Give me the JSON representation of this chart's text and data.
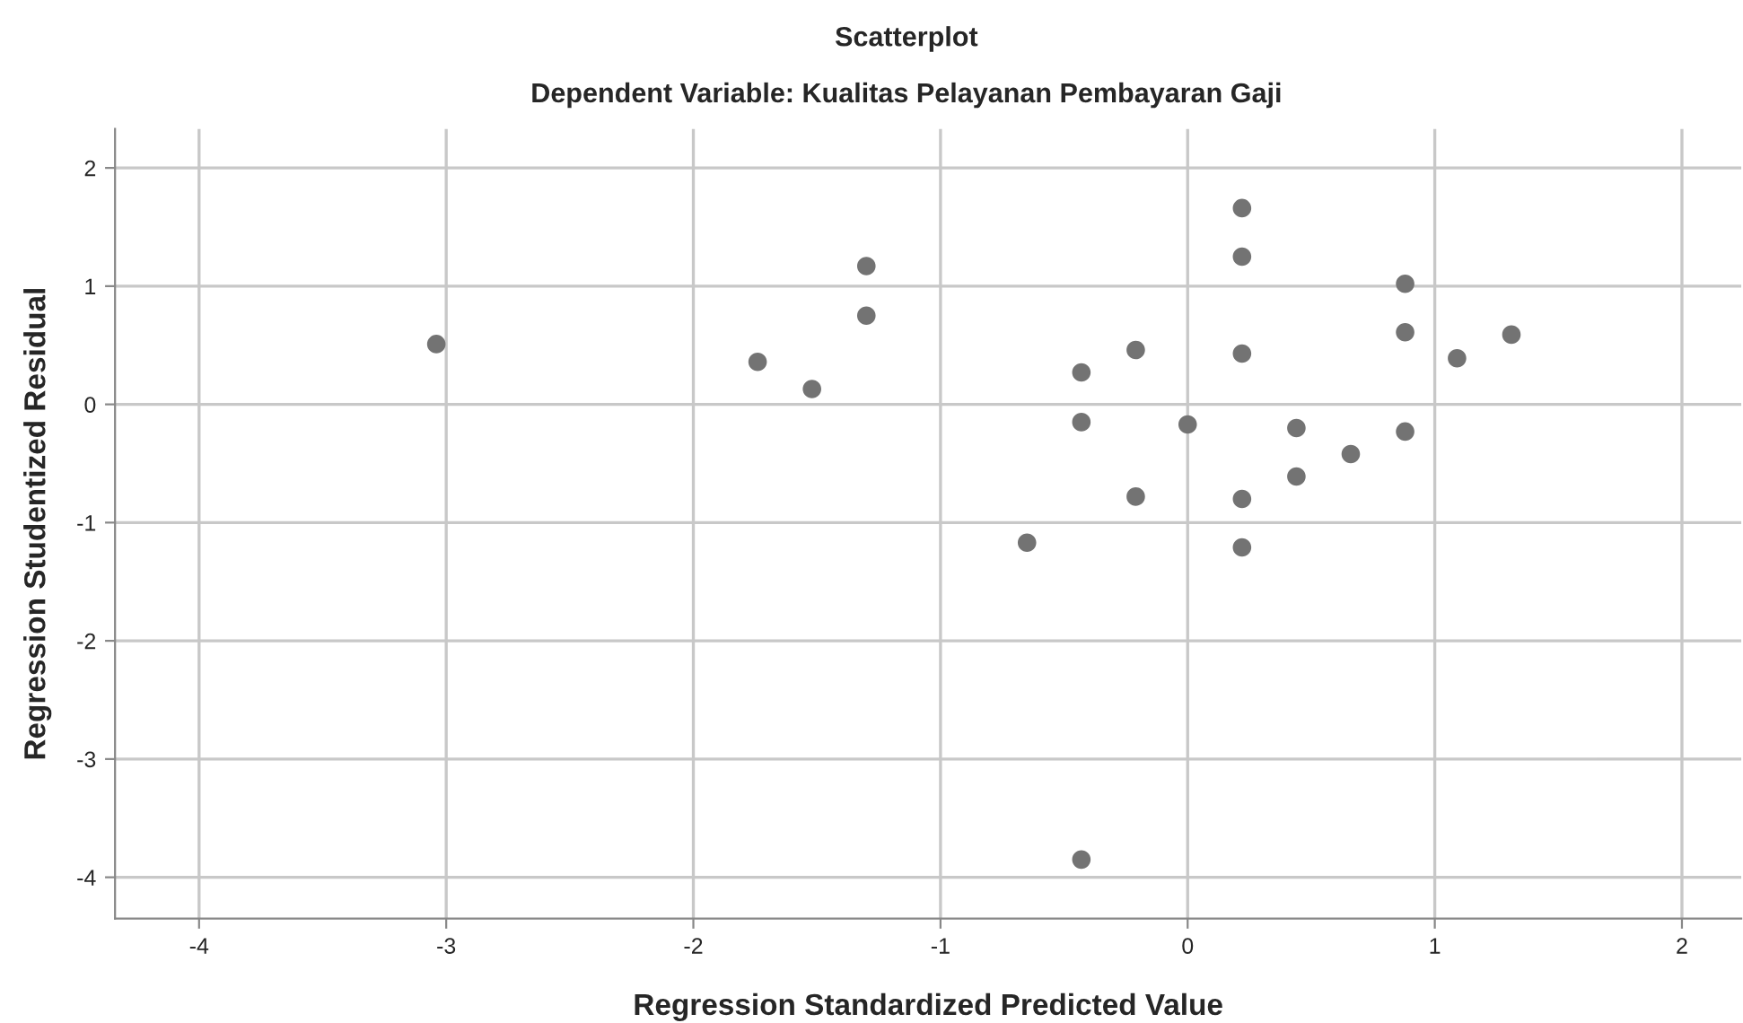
{
  "chart_data": {
    "type": "scatter",
    "title": "Scatterplot",
    "subtitle": "Dependent Variable: Kualitas Pelayanan Pembayaran Gaji",
    "xlabel": "Regression Standardized Predicted Value",
    "ylabel": "Regression Studentized Residual",
    "series": [
      {
        "color": "#737373",
        "x": [
          -3.04,
          -1.74,
          -1.52,
          -1.3,
          -1.3,
          0.22,
          0.22,
          0.88,
          0.88,
          1.31,
          1.09,
          -0.21,
          -0.43,
          0.22,
          -0.43,
          0.0,
          0.44,
          0.88,
          0.66,
          0.44,
          -0.21,
          0.22,
          -0.65,
          0.22,
          -0.43
        ],
        "values": [
          0.51,
          0.36,
          0.13,
          1.17,
          0.75,
          1.66,
          1.25,
          1.02,
          0.61,
          0.59,
          0.39,
          0.46,
          0.27,
          0.43,
          -0.15,
          -0.17,
          -0.2,
          -0.23,
          -0.42,
          -0.61,
          -0.78,
          -0.8,
          -1.17,
          -1.21,
          -3.85
        ]
      }
    ],
    "xlim": [
      -4.34,
      2.24
    ],
    "ylim": [
      -4.35,
      2.33
    ],
    "xticks": [
      -4,
      -3,
      -2,
      -1,
      0,
      1,
      2
    ],
    "yticks": [
      -4,
      -3,
      -2,
      -1,
      0,
      1,
      2
    ],
    "grid": true,
    "marker": "circle"
  }
}
